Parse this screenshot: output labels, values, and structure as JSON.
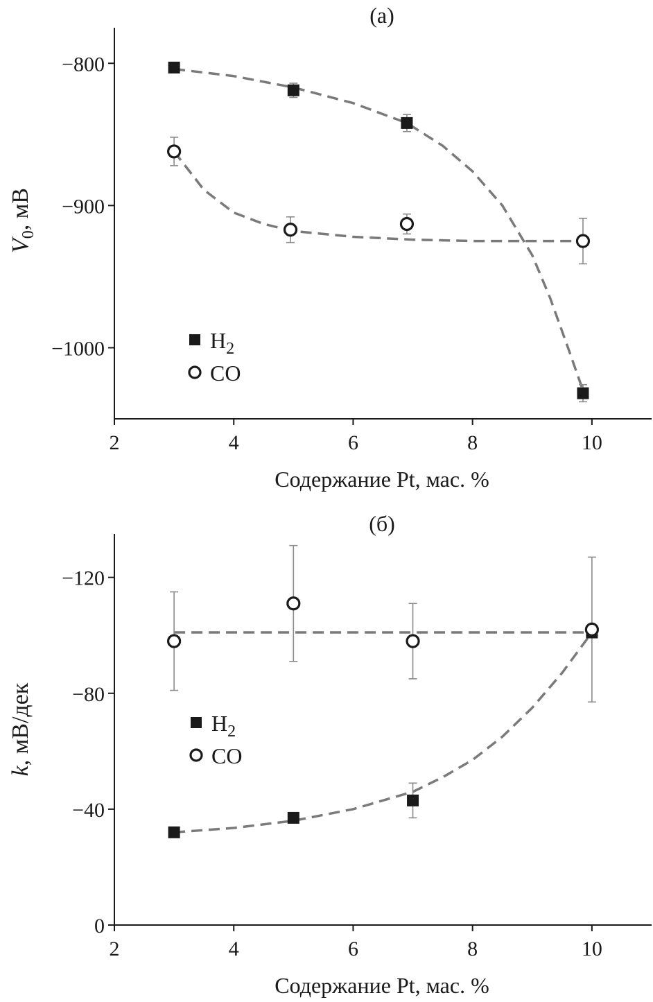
{
  "chart_data": [
    {
      "type": "scatter",
      "panel_label": "(а)",
      "xlabel": "Содержание Pt, мас. %",
      "ylabel_main": "V",
      "ylabel_sub": "0",
      "ylabel_rest": ", мВ",
      "xlim": [
        2,
        11
      ],
      "ylim": [
        -775,
        -1050
      ],
      "xticks": [
        2,
        4,
        6,
        8,
        10
      ],
      "yticks": [
        -800,
        -900,
        -1000
      ],
      "ytick_labels": [
        "−800",
        "−900",
        "−1000"
      ],
      "legend": [
        {
          "marker": "filled-square",
          "label_main": "H",
          "label_sub": "2"
        },
        {
          "marker": "open-circle",
          "label_main": "CO",
          "label_sub": ""
        }
      ],
      "series": [
        {
          "name": "H2",
          "marker": "filled-square",
          "points": [
            {
              "x": 3.0,
              "y": -803,
              "err": 0
            },
            {
              "x": 5.0,
              "y": -819,
              "err": 5
            },
            {
              "x": 6.9,
              "y": -842,
              "err": 6
            },
            {
              "x": 9.85,
              "y": -1032,
              "err": 6
            }
          ],
          "fit": [
            [
              3.0,
              -804
            ],
            [
              4.0,
              -809
            ],
            [
              5.0,
              -817
            ],
            [
              6.0,
              -828
            ],
            [
              6.9,
              -842
            ],
            [
              7.5,
              -858
            ],
            [
              8.0,
              -876
            ],
            [
              8.5,
              -900
            ],
            [
              9.0,
              -935
            ],
            [
              9.3,
              -965
            ],
            [
              9.6,
              -1000
            ],
            [
              9.85,
              -1030
            ]
          ]
        },
        {
          "name": "CO",
          "marker": "open-circle",
          "points": [
            {
              "x": 3.0,
              "y": -862,
              "err": 10
            },
            {
              "x": 4.95,
              "y": -917,
              "err": 9
            },
            {
              "x": 6.9,
              "y": -913,
              "err": 7
            },
            {
              "x": 9.85,
              "y": -925,
              "err": 16
            }
          ],
          "fit": [
            [
              3.0,
              -862
            ],
            [
              3.5,
              -889
            ],
            [
              4.0,
              -905
            ],
            [
              4.5,
              -913
            ],
            [
              5.0,
              -918
            ],
            [
              6.0,
              -922
            ],
            [
              7.0,
              -924
            ],
            [
              8.0,
              -925
            ],
            [
              9.0,
              -925
            ],
            [
              9.85,
              -925
            ]
          ]
        }
      ]
    },
    {
      "type": "scatter",
      "panel_label": "(б)",
      "xlabel": "Содержание Pt, мас. %",
      "ylabel_main": "k",
      "ylabel_sub": "",
      "ylabel_rest": ", мВ/дек",
      "xlim": [
        2,
        11
      ],
      "ylim": [
        -135,
        0
      ],
      "xticks": [
        2,
        4,
        6,
        8,
        10
      ],
      "yticks": [
        -120,
        -80,
        -40,
        0
      ],
      "ytick_labels": [
        "−120",
        "−80",
        "−40",
        "0"
      ],
      "legend": [
        {
          "marker": "filled-square",
          "label_main": "H",
          "label_sub": "2"
        },
        {
          "marker": "open-circle",
          "label_main": "CO",
          "label_sub": ""
        }
      ],
      "series": [
        {
          "name": "H2",
          "marker": "filled-square",
          "points": [
            {
              "x": 3.0,
              "y": -32,
              "err": 0
            },
            {
              "x": 5.0,
              "y": -37,
              "err": 0
            },
            {
              "x": 7.0,
              "y": -43,
              "err": 6
            },
            {
              "x": 10.0,
              "y": -101,
              "err": 0
            }
          ],
          "fit": [
            [
              3.0,
              -32
            ],
            [
              4.0,
              -33.5
            ],
            [
              5.0,
              -36
            ],
            [
              6.0,
              -40
            ],
            [
              7.0,
              -46
            ],
            [
              7.5,
              -51
            ],
            [
              8.0,
              -57
            ],
            [
              8.5,
              -65
            ],
            [
              9.0,
              -75
            ],
            [
              9.5,
              -87
            ],
            [
              10.0,
              -101
            ]
          ]
        },
        {
          "name": "CO",
          "marker": "open-circle",
          "points": [
            {
              "x": 3.0,
              "y": -98,
              "err": 17
            },
            {
              "x": 5.0,
              "y": -111,
              "err": 20
            },
            {
              "x": 7.0,
              "y": -98,
              "err": 13
            },
            {
              "x": 10.0,
              "y": -102,
              "err": 25
            }
          ],
          "fit": [
            [
              3.0,
              -101
            ],
            [
              10.0,
              -101
            ]
          ]
        }
      ]
    }
  ]
}
